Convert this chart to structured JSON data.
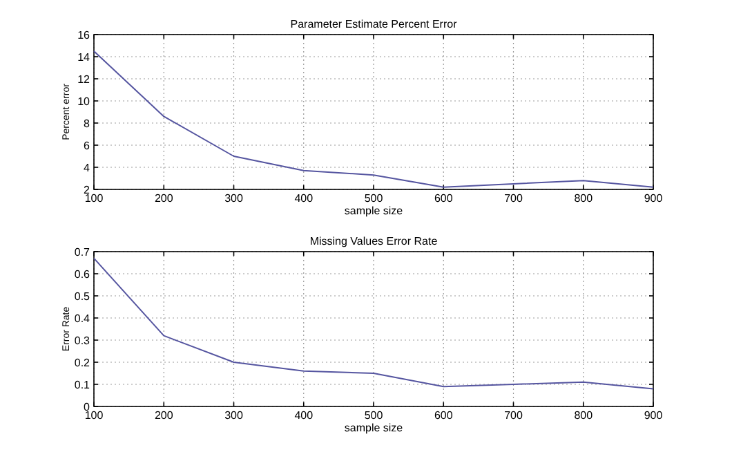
{
  "chart_data": [
    {
      "type": "line",
      "title": "Parameter Estimate Percent Error",
      "xlabel": "sample size",
      "ylabel": "Percent error",
      "x": [
        100,
        200,
        300,
        400,
        500,
        600,
        700,
        800,
        900
      ],
      "series": [
        {
          "color": "#5555a0",
          "values": [
            14.5,
            8.6,
            5.0,
            3.7,
            3.3,
            2.2,
            2.5,
            2.8,
            2.2
          ]
        }
      ],
      "xlim": [
        100,
        900
      ],
      "xticks": [
        100,
        200,
        300,
        400,
        500,
        600,
        700,
        800,
        900
      ],
      "ylim": [
        2,
        16
      ],
      "yticks": [
        2,
        4,
        6,
        8,
        10,
        12,
        14,
        16
      ],
      "grid": true
    },
    {
      "type": "line",
      "title": "Missing Values Error Rate",
      "xlabel": "sample size",
      "ylabel": "Error Rate",
      "x": [
        100,
        200,
        300,
        400,
        500,
        600,
        700,
        800,
        900
      ],
      "series": [
        {
          "color": "#5555a0",
          "values": [
            0.67,
            0.32,
            0.2,
            0.16,
            0.15,
            0.09,
            0.1,
            0.11,
            0.08
          ]
        }
      ],
      "xlim": [
        100,
        900
      ],
      "xticks": [
        100,
        200,
        300,
        400,
        500,
        600,
        700,
        800,
        900
      ],
      "ylim": [
        0,
        0.7
      ],
      "yticks": [
        0,
        0.1,
        0.2,
        0.3,
        0.4,
        0.5,
        0.6,
        0.7
      ],
      "grid": true
    }
  ]
}
